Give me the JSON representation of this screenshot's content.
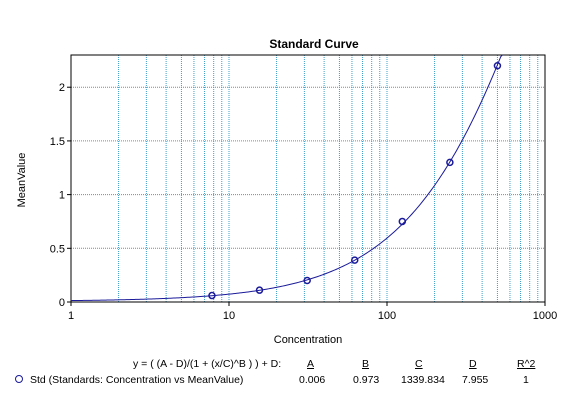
{
  "chart_data": {
    "type": "scatter",
    "title": "Standard Curve",
    "xlabel": "Concentration",
    "ylabel": "MeanValue",
    "x_scale": "log",
    "xlim": [
      1,
      1000
    ],
    "ylim": [
      0,
      2.3
    ],
    "x_ticks": [
      "1",
      "10",
      "100",
      "1000"
    ],
    "y_ticks": [
      "0",
      "0.5",
      "1",
      "1.5",
      "2"
    ],
    "grid": true,
    "marker_color": "#1a1a9a",
    "grid_color": "#3aa0c8",
    "series": [
      {
        "points": [
          {
            "x": 7.8,
            "y": 0.06
          },
          {
            "x": 15.6,
            "y": 0.11
          },
          {
            "x": 31.25,
            "y": 0.2
          },
          {
            "x": 62.5,
            "y": 0.39
          },
          {
            "x": 125,
            "y": 0.75
          },
          {
            "x": 250,
            "y": 1.3
          },
          {
            "x": 500,
            "y": 2.2
          }
        ]
      }
    ],
    "fit": {
      "equation": "y = ( (A - D)/(1 + (x/C)^B ) ) + D:",
      "headers": [
        "A",
        "B",
        "C",
        "D",
        "R^2"
      ],
      "values": [
        "0.006",
        "0.973",
        "1339.834",
        "7.955",
        "1"
      ],
      "A": 0.006,
      "B": 0.973,
      "C": 1339.834,
      "D": 7.955
    },
    "legend": {
      "label": "Std (Standards: Concentration vs MeanValue)"
    }
  }
}
